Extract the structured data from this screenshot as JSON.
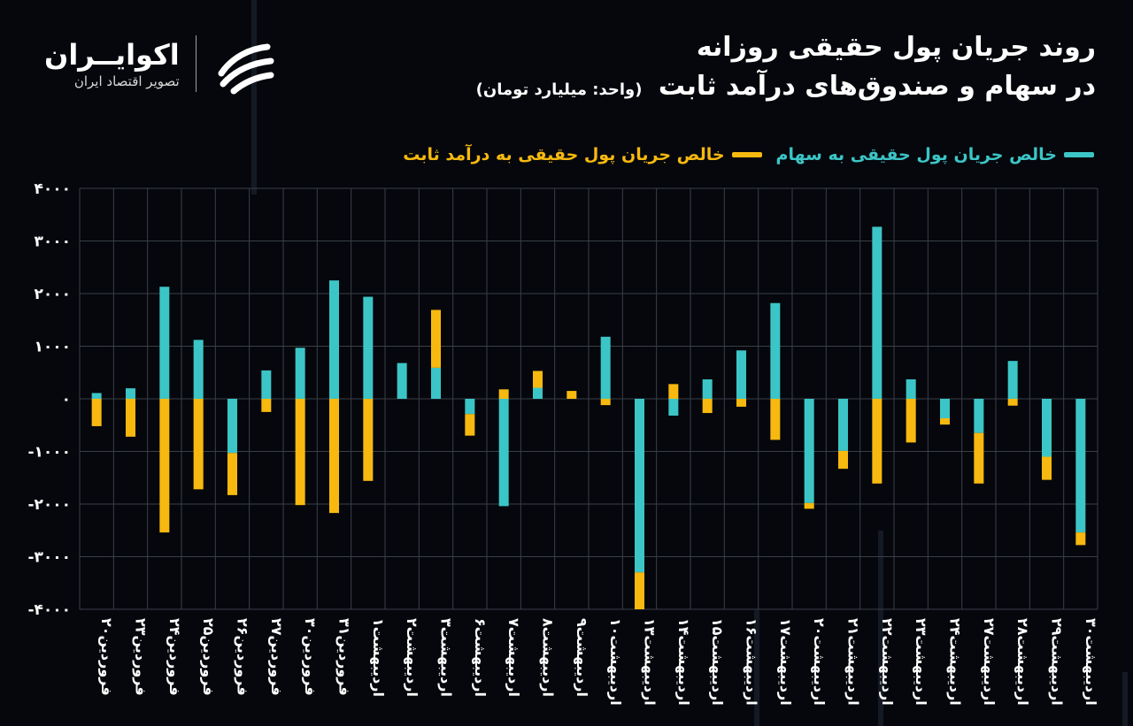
{
  "header": {
    "title_line1": "روند جریان پول حقیقی روزانه",
    "title_line2": "در سهام و صندوق‌های درآمد ثابت",
    "unit": "(واحد: میلیارد تومان)"
  },
  "logo": {
    "name": "اکوایــران",
    "subtitle": "تصویر اقتصاد ایران"
  },
  "colors": {
    "stocks": "#3cc5c6",
    "fixed_income": "#f7b90f",
    "background": "#05070c",
    "grid": "#3a3f47",
    "axis_text": "#ffffff"
  },
  "chart_data": {
    "type": "bar",
    "stacked": true,
    "ylim": [
      -4000,
      4000
    ],
    "yticks": [
      4000,
      3000,
      2000,
      1000,
      0,
      -1000,
      -2000,
      -3000,
      -4000
    ],
    "ytick_labels": [
      "۴۰۰۰",
      "۳۰۰۰",
      "۲۰۰۰",
      "۱۰۰۰",
      "۰",
      "-۱۰۰۰",
      "-۲۰۰۰",
      "-۳۰۰۰",
      "-۴۰۰۰"
    ],
    "grid": true,
    "legend_position": "top-right",
    "categories": [
      "فروردین۲۰",
      "فروردین۲۳",
      "فروردین۲۴",
      "فروردین۲۵",
      "فروردین۲۶",
      "فروردین۲۷",
      "فروردین۳۰",
      "فروردین۳۱",
      "اردیبهشت۱",
      "اردیبهشت۲",
      "اردیبهشت۳",
      "اردیبهشت۶",
      "اردیبهشت۷",
      "اردیبهشت۸",
      "اردیبهشت۹",
      "اردیبهشت۱۰",
      "اردیبهشت۱۳",
      "اردیبهشت۱۴",
      "اردیبهشت۱۵",
      "اردیبهشت۱۶",
      "اردیبهشت۱۷",
      "اردیبهشت۲۰",
      "اردیبهشت۲۱",
      "اردیبهشت۲۲",
      "اردیبهشت۲۳",
      "اردیبهشت۲۴",
      "اردیبهشت۲۷",
      "اردیبهشت۲۸",
      "اردیبهشت۲۹",
      "اردیبهشت۳۰"
    ],
    "series": [
      {
        "name": "خالص جریان پول حقیقی به سهام",
        "values": [
          110,
          200,
          2130,
          1120,
          -1030,
          540,
          970,
          2250,
          1940,
          680,
          590,
          -290,
          -2040,
          210,
          0,
          1180,
          -3300,
          -320,
          370,
          920,
          1820,
          -1980,
          -990,
          3270,
          370,
          -370,
          -650,
          720,
          -1100,
          -2540
        ]
      },
      {
        "name": "خالص جریان پول حقیقی به درآمد ثابت",
        "values": [
          -520,
          -720,
          -2540,
          -1720,
          -800,
          -250,
          -2020,
          -2170,
          -1560,
          0,
          1100,
          -410,
          180,
          320,
          150,
          -120,
          -700,
          280,
          -270,
          -150,
          -780,
          -110,
          -340,
          -1610,
          -830,
          -120,
          -960,
          -130,
          -440,
          -240
        ]
      }
    ]
  }
}
